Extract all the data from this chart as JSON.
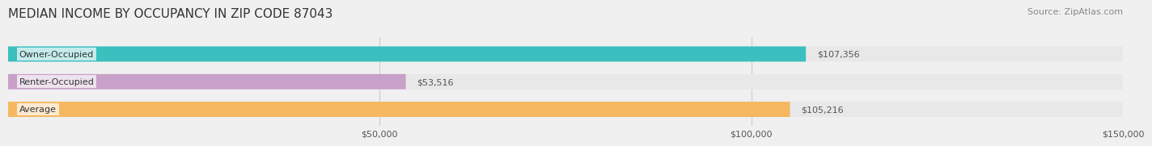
{
  "title": "MEDIAN INCOME BY OCCUPANCY IN ZIP CODE 87043",
  "source": "Source: ZipAtlas.com",
  "categories": [
    "Owner-Occupied",
    "Renter-Occupied",
    "Average"
  ],
  "values": [
    107356,
    53516,
    105216
  ],
  "bar_colors": [
    "#3bbfbf",
    "#c8a0c8",
    "#f5b860"
  ],
  "label_texts": [
    "$107,356",
    "$53,516",
    "$105,216"
  ],
  "xlim": [
    0,
    150000
  ],
  "xticks": [
    0,
    50000,
    100000,
    150000
  ],
  "xtick_labels": [
    "$50,000",
    "$100,000",
    "$150,000"
  ],
  "bg_color": "#f0f0f0",
  "bar_bg_color": "#e8e8e8",
  "title_fontsize": 11,
  "source_fontsize": 8,
  "label_fontsize": 8,
  "tick_fontsize": 8,
  "bar_height": 0.55,
  "bar_label_color": "#555555"
}
